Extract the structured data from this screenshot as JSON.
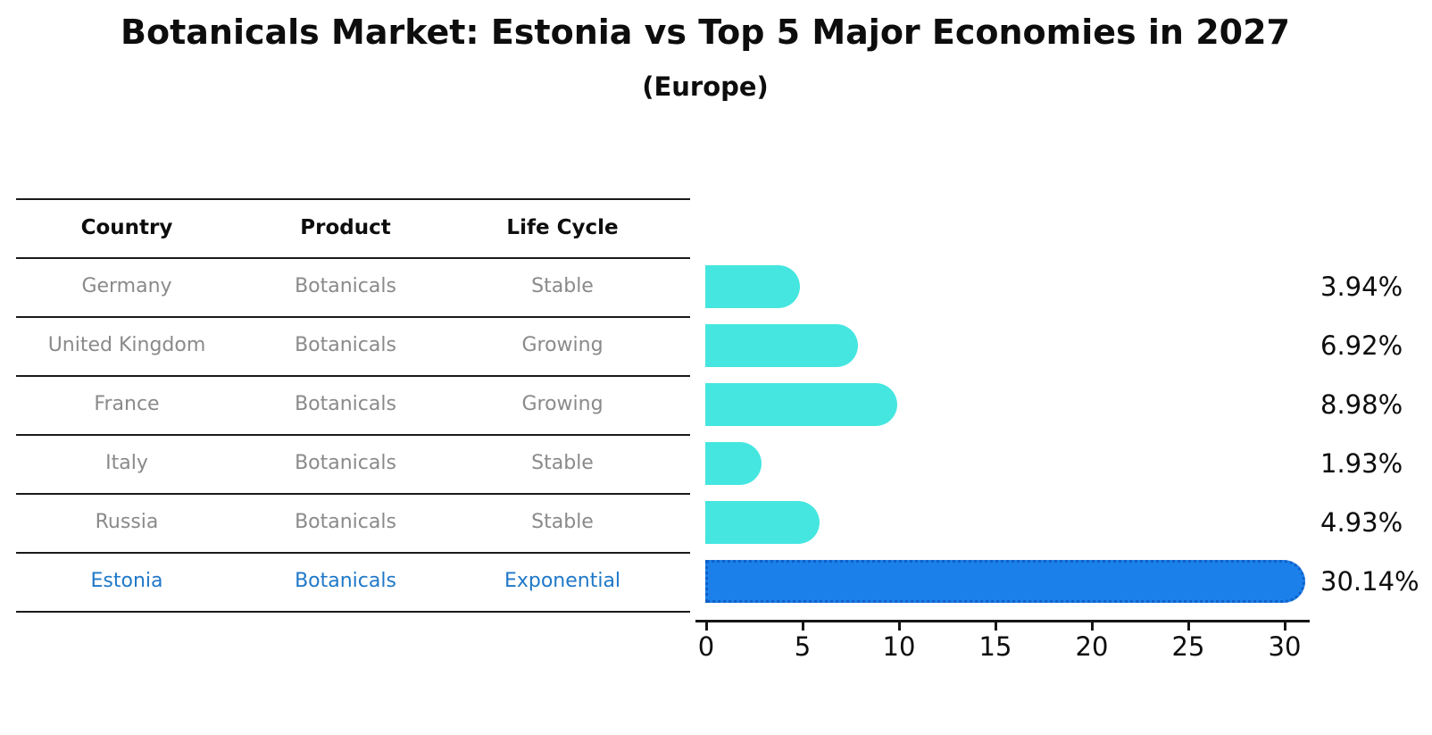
{
  "title": "Botanicals Market: Estonia vs Top 5 Major Economies in 2027",
  "subtitle": "(Europe)",
  "table": {
    "headers": [
      "Country",
      "Product",
      "Life Cycle"
    ]
  },
  "chart_data": {
    "type": "bar",
    "orientation": "horizontal",
    "unit": "%",
    "xlabel": "",
    "ylabel": "",
    "xlim": [
      0,
      31.3
    ],
    "x_ticks": [
      0,
      5,
      10,
      15,
      20,
      25,
      30
    ],
    "grid": false,
    "legend": null,
    "rows": [
      {
        "country": "Germany",
        "product": "Botanicals",
        "life_cycle": "Stable",
        "value": 3.94,
        "value_label": "3.94%",
        "highlight": false
      },
      {
        "country": "United Kingdom",
        "product": "Botanicals",
        "life_cycle": "Growing",
        "value": 6.92,
        "value_label": "6.92%",
        "highlight": false
      },
      {
        "country": "France",
        "product": "Botanicals",
        "life_cycle": "Growing",
        "value": 8.98,
        "value_label": "8.98%",
        "highlight": false
      },
      {
        "country": "Italy",
        "product": "Botanicals",
        "life_cycle": "Stable",
        "value": 1.93,
        "value_label": "1.93%",
        "highlight": false
      },
      {
        "country": "Russia",
        "product": "Botanicals",
        "life_cycle": "Stable",
        "value": 4.93,
        "value_label": "4.93%",
        "highlight": false
      },
      {
        "country": "Estonia",
        "product": "Botanicals",
        "life_cycle": "Exponential",
        "value": 30.14,
        "value_label": "30.14%",
        "highlight": true
      }
    ],
    "colors": {
      "bar": "#45E6E0",
      "highlight_bar": "#1B80EA",
      "highlight_bar_border": "#1060C8",
      "highlight_text": "#1F78C8",
      "text_muted": "#8a8a8a",
      "text_dark": "#0d0d0d"
    }
  }
}
